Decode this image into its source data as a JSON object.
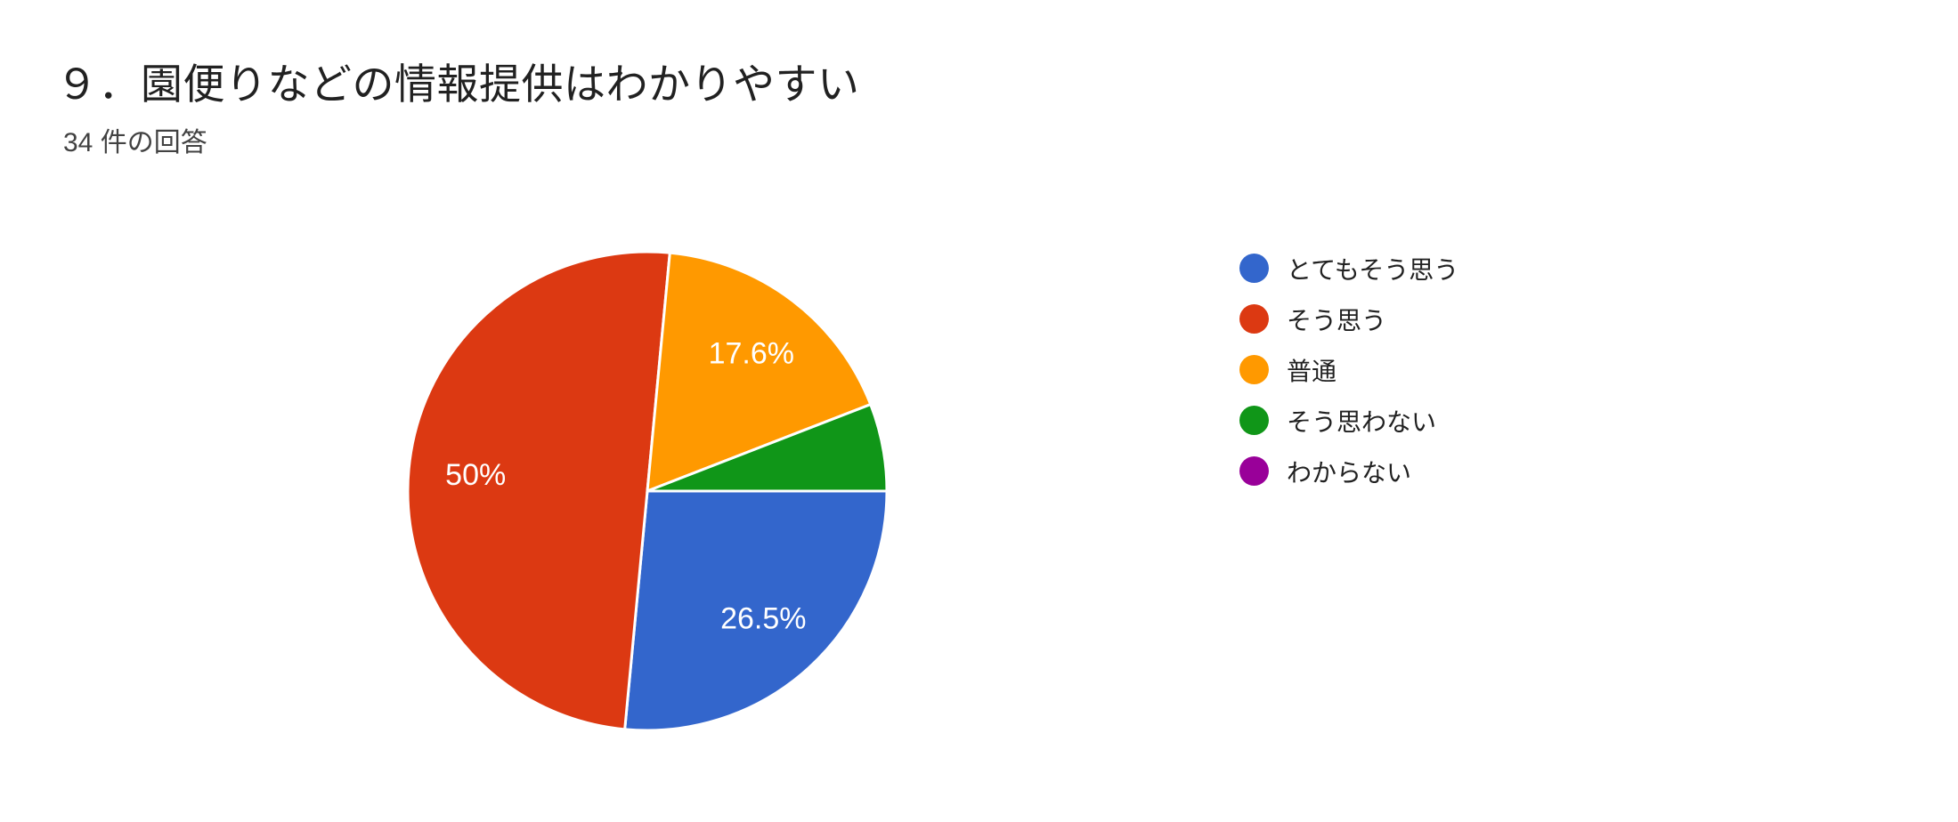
{
  "chart_data": {
    "type": "pie",
    "title": "９．園便りなどの情報提供はわかりやすい",
    "subtitle": "34 件の回答",
    "response_count": "34",
    "legend_position": "right",
    "labels_style": "percent-inside-white",
    "start_angle_deg": 90,
    "percent_label_color": "#ffffff",
    "title_color": "#212121",
    "subtitle_color": "#424242",
    "legend_text_color": "#212121",
    "slices": [
      {
        "label": "とてもそう思う",
        "percent": 26.5,
        "display_percent": "26.5%",
        "color": "#3366CC"
      },
      {
        "label": "そう思う",
        "percent": 50,
        "display_percent": "50%",
        "color": "#DC3912"
      },
      {
        "label": "普通",
        "percent": 17.6,
        "display_percent": "",
        "color": "#FF9900"
      },
      {
        "label": "そう思わない",
        "percent": 5.9,
        "display_percent": "",
        "color": "#109618"
      },
      {
        "label": "わからない",
        "percent": 0,
        "display_percent": "",
        "color": "#990099"
      }
    ],
    "visible_percent_labels": {
      "slice_0": "26.5%",
      "slice_1": "50%",
      "slice_2": "17.6%"
    }
  }
}
